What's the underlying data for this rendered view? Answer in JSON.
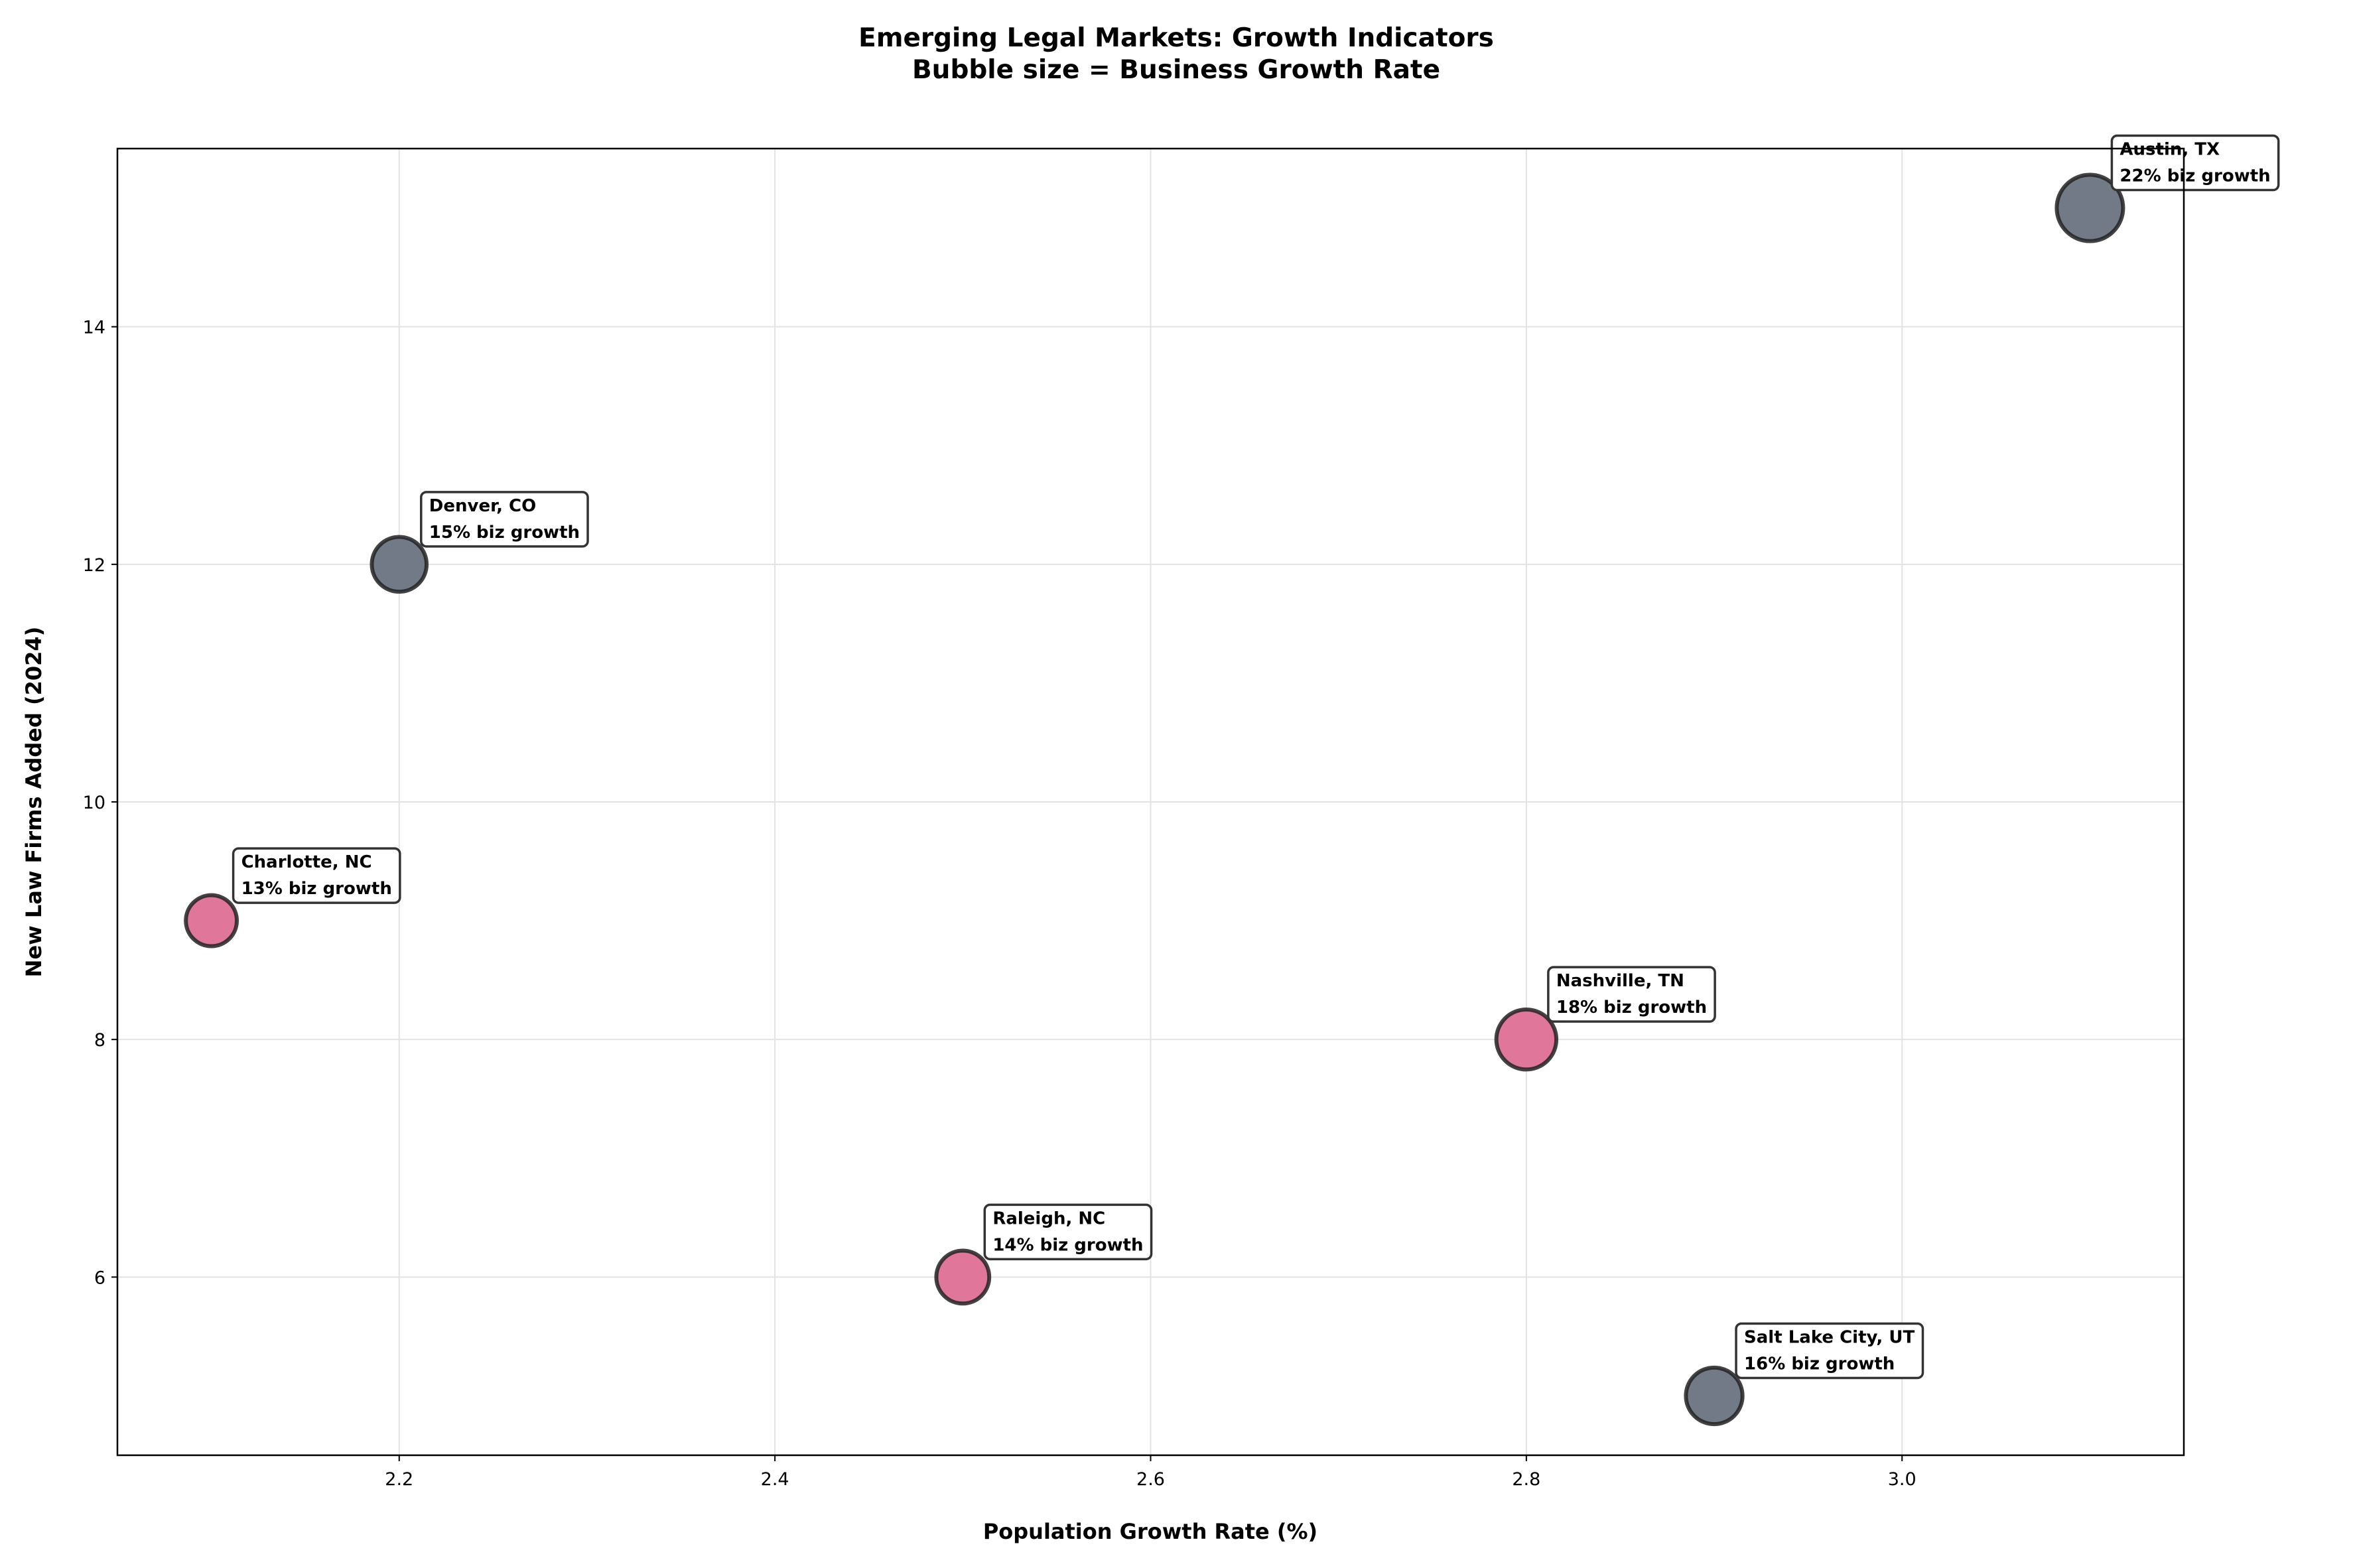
{
  "chart_data": {
    "type": "scatter",
    "title": "Emerging Legal Markets: Growth Indicators",
    "subtitle": "Bubble size = Business Growth Rate",
    "xlabel": "Population Growth Rate (%)",
    "ylabel": "New Law Firms Added (2024)",
    "xlim": [
      2.05,
      3.15
    ],
    "ylim": [
      4.5,
      15.5
    ],
    "xticks": [
      "2.2",
      "2.4",
      "2.6",
      "2.8",
      "3.0"
    ],
    "yticks": [
      "6",
      "8",
      "10",
      "12",
      "14"
    ],
    "grid": true,
    "colors": {
      "gray": "#737a87",
      "pink": "#e0779a",
      "edge": "#222222"
    },
    "points": [
      {
        "city": "Austin, TX",
        "x": 3.1,
        "y": 15,
        "biz_growth": 22,
        "label": "22% biz growth",
        "color": "gray"
      },
      {
        "city": "Denver, CO",
        "x": 2.2,
        "y": 12,
        "biz_growth": 15,
        "label": "15% biz growth",
        "color": "gray"
      },
      {
        "city": "Charlotte, NC",
        "x": 2.1,
        "y": 9,
        "biz_growth": 13,
        "label": "13% biz growth",
        "color": "pink"
      },
      {
        "city": "Nashville, TN",
        "x": 2.8,
        "y": 8,
        "biz_growth": 18,
        "label": "18% biz growth",
        "color": "pink"
      },
      {
        "city": "Raleigh, NC",
        "x": 2.5,
        "y": 6,
        "biz_growth": 14,
        "label": "14% biz growth",
        "color": "pink"
      },
      {
        "city": "Salt Lake City, UT",
        "x": 2.9,
        "y": 5,
        "biz_growth": 16,
        "label": "16% biz growth",
        "color": "gray"
      }
    ]
  }
}
